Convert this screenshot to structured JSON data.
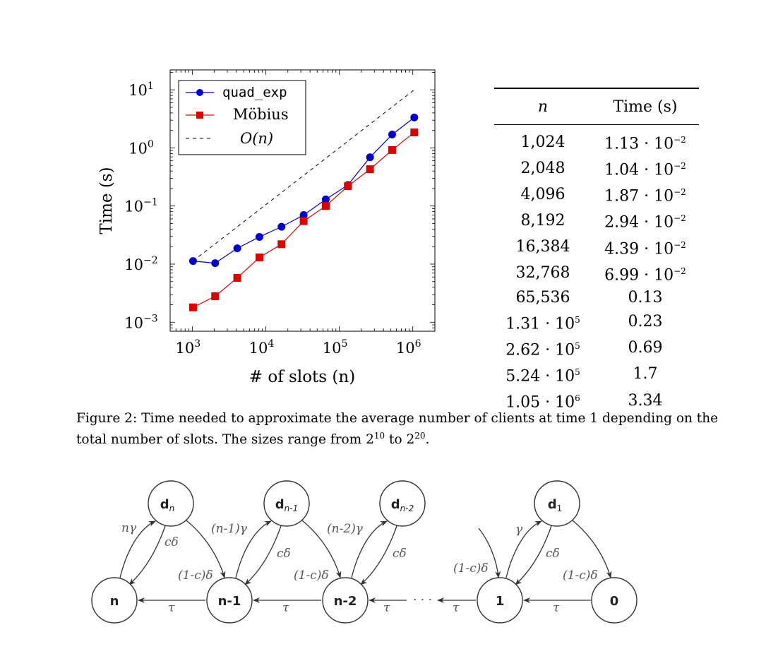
{
  "chart_data": {
    "type": "line",
    "x_scale": "log",
    "y_scale": "log",
    "xlabel": "# of slots (n)",
    "ylabel": "Time (s)",
    "xlim": [
      500,
      2000000
    ],
    "ylim": [
      0.0007,
      22
    ],
    "x_ticks": [
      1000,
      10000,
      100000,
      1000000
    ],
    "x_tick_labels": [
      {
        "base": "10",
        "exp": "3"
      },
      {
        "base": "10",
        "exp": "4"
      },
      {
        "base": "10",
        "exp": "5"
      },
      {
        "base": "10",
        "exp": "6"
      }
    ],
    "y_ticks": [
      0.001,
      0.01,
      0.1,
      1,
      10
    ],
    "y_tick_labels": [
      {
        "base": "10",
        "exp": "−3"
      },
      {
        "base": "10",
        "exp": "−2"
      },
      {
        "base": "10",
        "exp": "−1"
      },
      {
        "base": "10",
        "exp": "0"
      },
      {
        "base": "10",
        "exp": "1"
      }
    ],
    "legend_position": "top-left",
    "series": [
      {
        "name": "quad_exp",
        "color": "#0000cc",
        "marker": "circle",
        "x": [
          1024,
          2048,
          4096,
          8192,
          16384,
          32768,
          65536,
          131072,
          262144,
          524288,
          1048576
        ],
        "y": [
          0.0113,
          0.0104,
          0.0187,
          0.0294,
          0.0439,
          0.0699,
          0.13,
          0.23,
          0.69,
          1.7,
          3.34
        ]
      },
      {
        "name": "Möbius",
        "color": "#dd0000",
        "marker": "square",
        "x": [
          1024,
          2048,
          4096,
          8192,
          16384,
          32768,
          65536,
          131072,
          262144,
          524288,
          1048576
        ],
        "y": [
          0.0018,
          0.0028,
          0.0058,
          0.013,
          0.022,
          0.055,
          0.1,
          0.22,
          0.43,
          0.92,
          1.85
        ]
      },
      {
        "name": "O(n)",
        "color": "#000000",
        "style": "dashed",
        "x": [
          1024,
          1048576
        ],
        "y": [
          0.0113,
          10
        ]
      }
    ]
  },
  "table": {
    "headers": [
      "n",
      "Time (s)"
    ],
    "rows": [
      {
        "n": "1,024",
        "time": "1.13 · 10",
        "time_exp": "−2"
      },
      {
        "n": "2,048",
        "time": "1.04 · 10",
        "time_exp": "−2"
      },
      {
        "n": "4,096",
        "time": "1.87 · 10",
        "time_exp": "−2"
      },
      {
        "n": "8,192",
        "time": "2.94 · 10",
        "time_exp": "−2"
      },
      {
        "n": "16,384",
        "time": "4.39 · 10",
        "time_exp": "−2"
      },
      {
        "n": "32,768",
        "time": "6.99 · 10",
        "time_exp": "−2"
      },
      {
        "n": "65,536",
        "time": "0.13",
        "time_exp": ""
      },
      {
        "n": "1.31 · 10",
        "n_exp": "5",
        "time": "0.23",
        "time_exp": ""
      },
      {
        "n": "2.62 · 10",
        "n_exp": "5",
        "time": "0.69",
        "time_exp": ""
      },
      {
        "n": "5.24 · 10",
        "n_exp": "5",
        "time": "1.7",
        "time_exp": ""
      },
      {
        "n": "1.05 · 10",
        "n_exp": "6",
        "time": "3.34",
        "time_exp": ""
      }
    ]
  },
  "caption": {
    "label": "Figure 2:",
    "text_before": "Time needed to approximate the average number of clients at time 1 depending on the total number of slots. The sizes range from 2",
    "exp1": "10",
    "text_mid": " to 2",
    "exp2": "20",
    "text_after": "."
  },
  "diagram": {
    "nodes": {
      "n": "n",
      "n1": "n-1",
      "n2": "n-2",
      "one": "1",
      "zero": "0",
      "dn_base": "d",
      "dn_sub": "n",
      "dn1_base": "d",
      "dn1_sub": "n-1",
      "dn2_base": "d",
      "dn2_sub": "n-2",
      "d1_base": "d",
      "d1_sub": "1"
    },
    "edge_labels": {
      "n_gamma": "nγ",
      "c_delta": "cδ",
      "n1_gamma": "(n-1)γ",
      "n2_gamma": "(n-2)γ",
      "gamma": "γ",
      "one_minus_c_delta": "(1-c)δ",
      "tau": "τ",
      "dots": "· · ·"
    }
  }
}
